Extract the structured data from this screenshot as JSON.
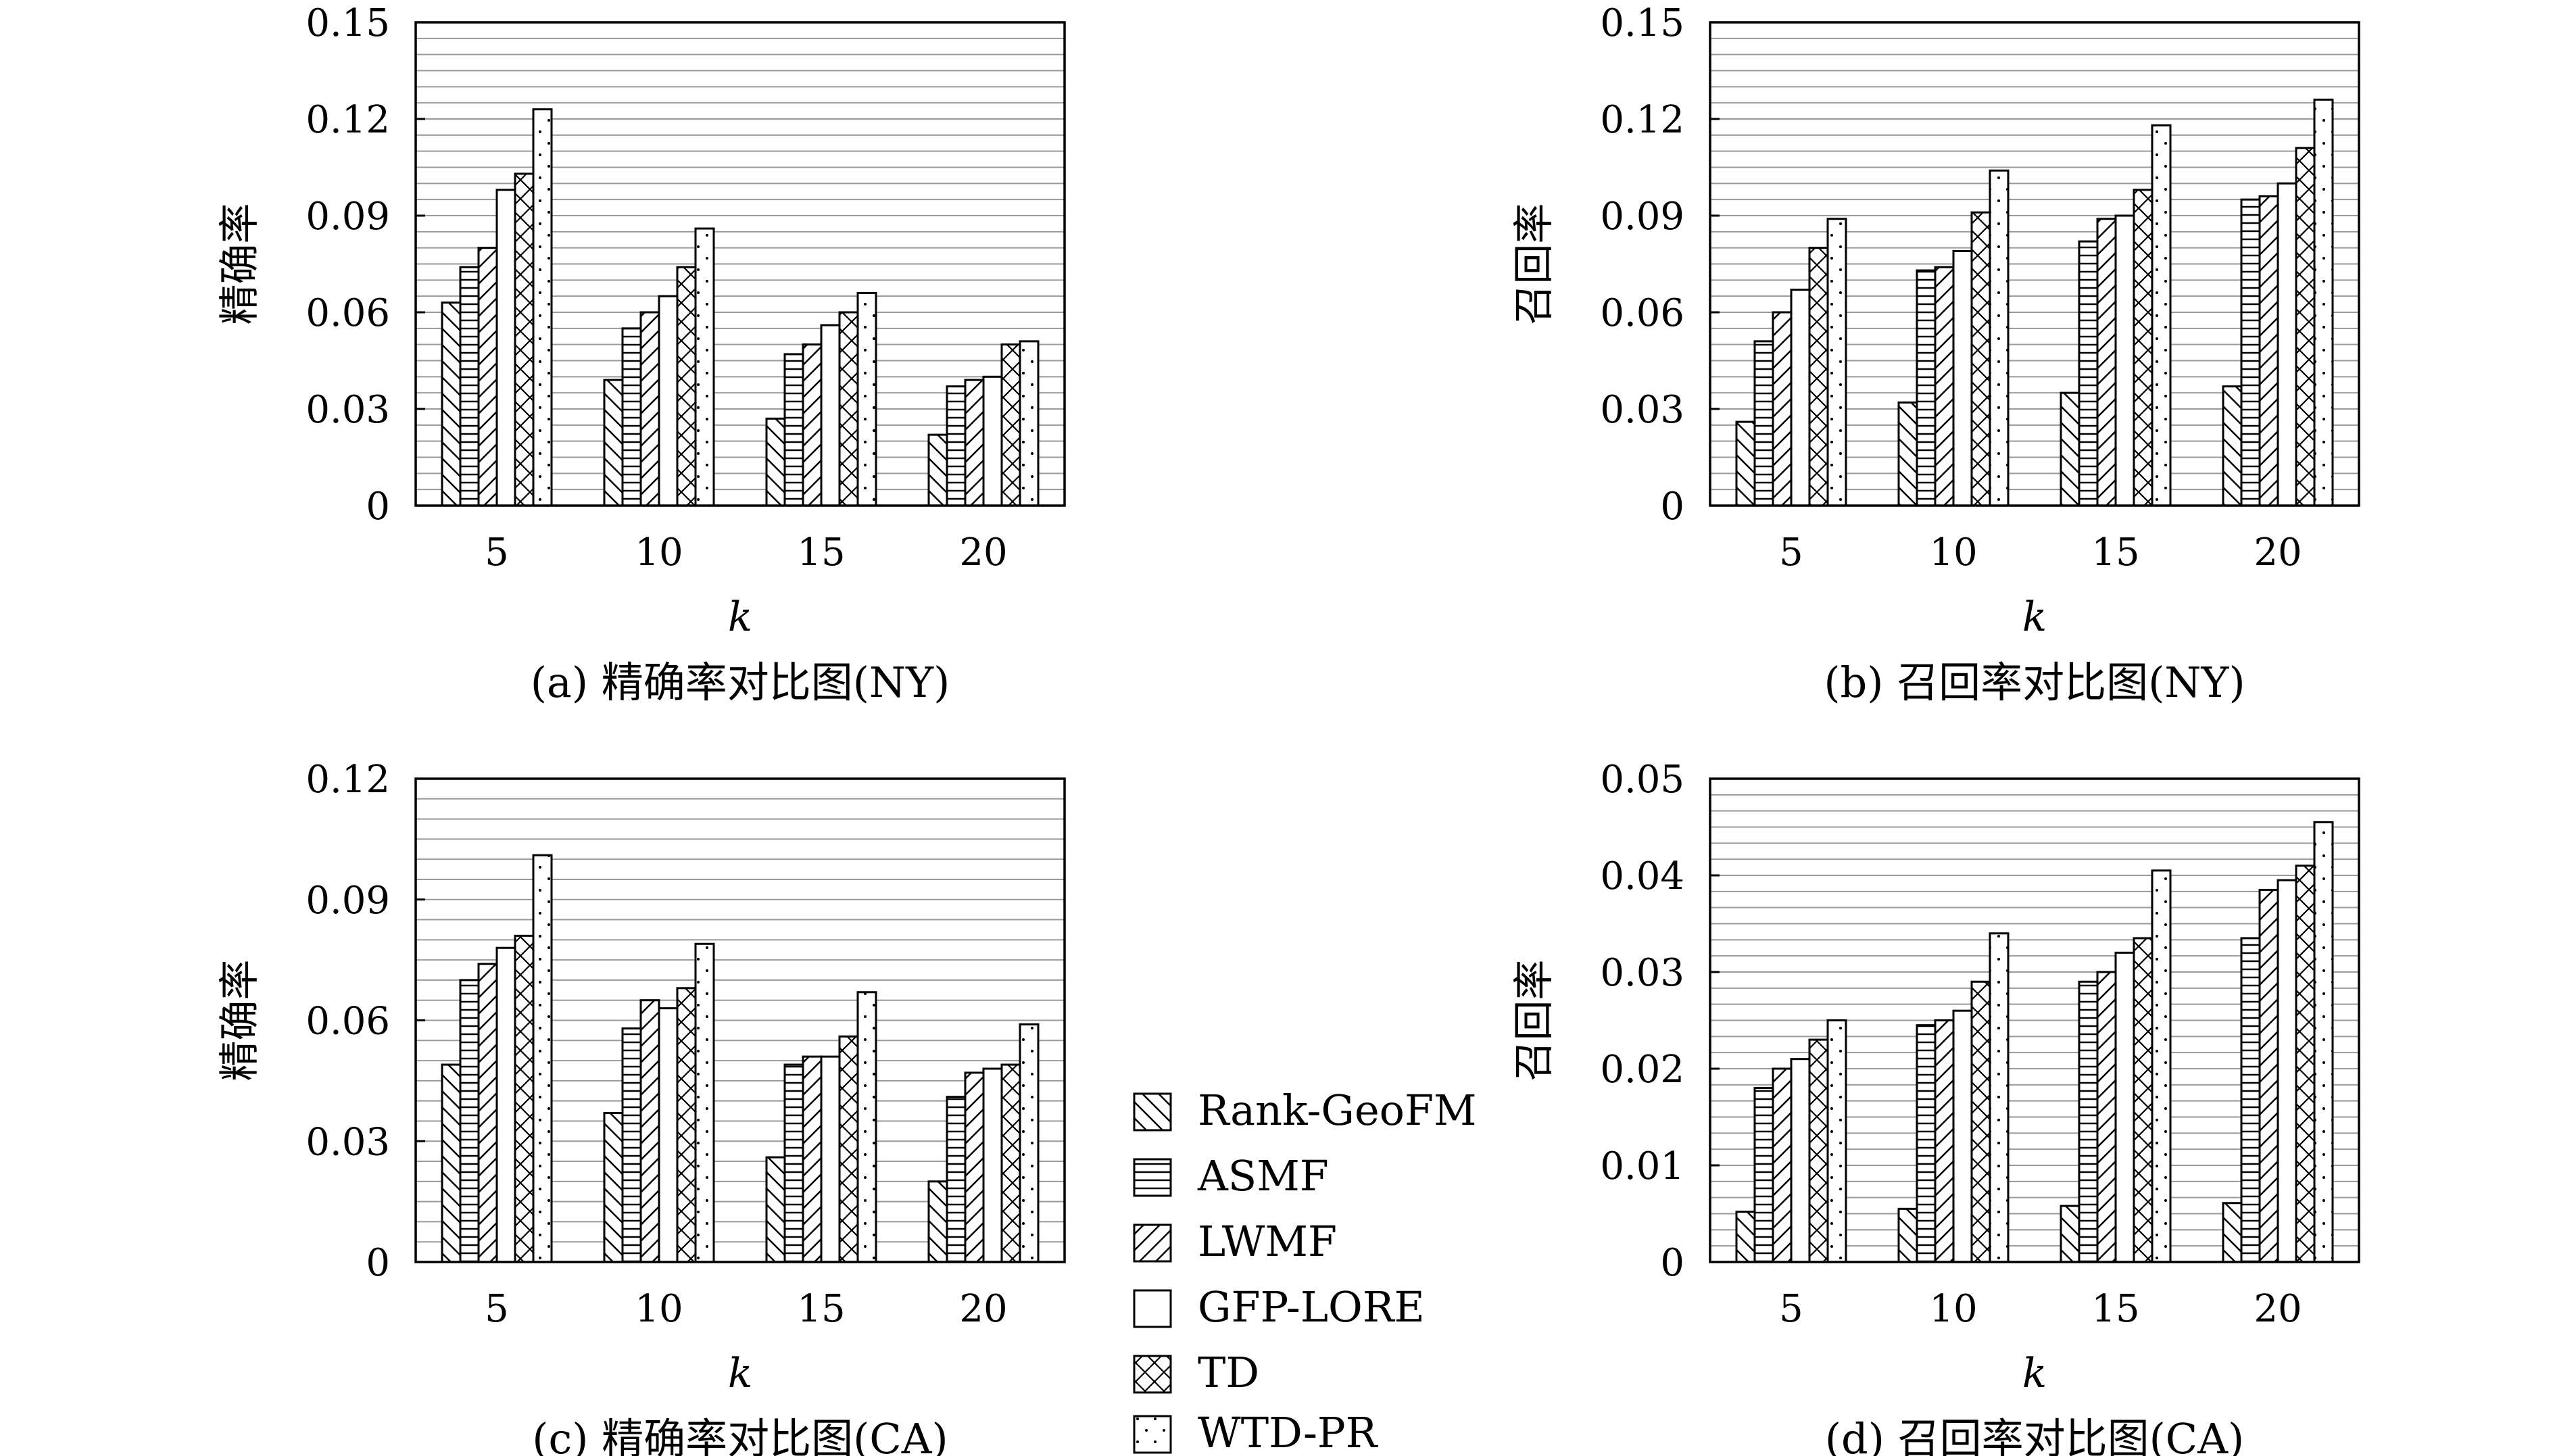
{
  "legend": [
    {
      "name": "Rank-GeoFM",
      "pattern": "backslash-hatch"
    },
    {
      "name": "ASMF",
      "pattern": "horizontal-lines"
    },
    {
      "name": "LWMF",
      "pattern": "slash-hatch"
    },
    {
      "name": "GFP-LORE",
      "pattern": "empty"
    },
    {
      "name": "TD",
      "pattern": "cross-hatch"
    },
    {
      "name": "WTD-PR",
      "pattern": "dots"
    }
  ],
  "chart_data": [
    {
      "type": "bar",
      "caption": "(a) 精确率对比图(NY)",
      "xlabel": "k",
      "ylabel": "精确率",
      "categories": [
        "5",
        "10",
        "15",
        "20"
      ],
      "ylim": [
        0,
        0.15
      ],
      "yticks": [
        "0",
        "0.03",
        "0.06",
        "0.09",
        "0.12",
        "0.15"
      ],
      "grid": true,
      "series": [
        {
          "name": "Rank-GeoFM",
          "values": [
            0.063,
            0.039,
            0.027,
            0.022
          ]
        },
        {
          "name": "ASMF",
          "values": [
            0.074,
            0.055,
            0.047,
            0.037
          ]
        },
        {
          "name": "LWMF",
          "values": [
            0.08,
            0.06,
            0.05,
            0.039
          ]
        },
        {
          "name": "GFP-LORE",
          "values": [
            0.098,
            0.065,
            0.056,
            0.04
          ]
        },
        {
          "name": "TD",
          "values": [
            0.103,
            0.074,
            0.06,
            0.05
          ]
        },
        {
          "name": "WTD-PR",
          "values": [
            0.123,
            0.086,
            0.066,
            0.051
          ]
        }
      ]
    },
    {
      "type": "bar",
      "caption": "(b) 召回率对比图(NY)",
      "xlabel": "k",
      "ylabel": "召回率",
      "categories": [
        "5",
        "10",
        "15",
        "20"
      ],
      "ylim": [
        0,
        0.15
      ],
      "yticks": [
        "0",
        "0.03",
        "0.06",
        "0.09",
        "0.12",
        "0.15"
      ],
      "grid": true,
      "series": [
        {
          "name": "Rank-GeoFM",
          "values": [
            0.026,
            0.032,
            0.035,
            0.037
          ]
        },
        {
          "name": "ASMF",
          "values": [
            0.051,
            0.073,
            0.082,
            0.095
          ]
        },
        {
          "name": "LWMF",
          "values": [
            0.06,
            0.074,
            0.089,
            0.096
          ]
        },
        {
          "name": "GFP-LORE",
          "values": [
            0.067,
            0.079,
            0.09,
            0.1
          ]
        },
        {
          "name": "TD",
          "values": [
            0.08,
            0.091,
            0.098,
            0.111
          ]
        },
        {
          "name": "WTD-PR",
          "values": [
            0.089,
            0.104,
            0.118,
            0.126
          ]
        }
      ]
    },
    {
      "type": "bar",
      "caption": "(c) 精确率对比图(CA)",
      "xlabel": "k",
      "ylabel": "精确率",
      "categories": [
        "5",
        "10",
        "15",
        "20"
      ],
      "ylim": [
        0,
        0.12
      ],
      "yticks": [
        "0",
        "0.03",
        "0.06",
        "0.09",
        "0.12"
      ],
      "grid": true,
      "series": [
        {
          "name": "Rank-GeoFM",
          "values": [
            0.049,
            0.037,
            0.026,
            0.02
          ]
        },
        {
          "name": "ASMF",
          "values": [
            0.07,
            0.058,
            0.049,
            0.041
          ]
        },
        {
          "name": "LWMF",
          "values": [
            0.074,
            0.065,
            0.051,
            0.047
          ]
        },
        {
          "name": "GFP-LORE",
          "values": [
            0.078,
            0.063,
            0.051,
            0.048
          ]
        },
        {
          "name": "TD",
          "values": [
            0.081,
            0.068,
            0.056,
            0.049
          ]
        },
        {
          "name": "WTD-PR",
          "values": [
            0.101,
            0.079,
            0.067,
            0.059
          ]
        }
      ]
    },
    {
      "type": "bar",
      "caption": "(d) 召回率对比图(CA)",
      "xlabel": "k",
      "ylabel": "召回率",
      "categories": [
        "5",
        "10",
        "15",
        "20"
      ],
      "ylim": [
        0,
        0.05
      ],
      "yticks": [
        "0",
        "0.01",
        "0.02",
        "0.03",
        "0.04",
        "0.05"
      ],
      "grid": true,
      "series": [
        {
          "name": "Rank-GeoFM",
          "values": [
            0.0052,
            0.0055,
            0.0058,
            0.0061
          ]
        },
        {
          "name": "ASMF",
          "values": [
            0.018,
            0.0245,
            0.029,
            0.0335
          ]
        },
        {
          "name": "LWMF",
          "values": [
            0.02,
            0.025,
            0.03,
            0.0385
          ]
        },
        {
          "name": "GFP-LORE",
          "values": [
            0.021,
            0.026,
            0.032,
            0.0395
          ]
        },
        {
          "name": "TD",
          "values": [
            0.023,
            0.029,
            0.0335,
            0.041
          ]
        },
        {
          "name": "WTD-PR",
          "values": [
            0.025,
            0.034,
            0.0405,
            0.0455
          ]
        }
      ]
    }
  ]
}
